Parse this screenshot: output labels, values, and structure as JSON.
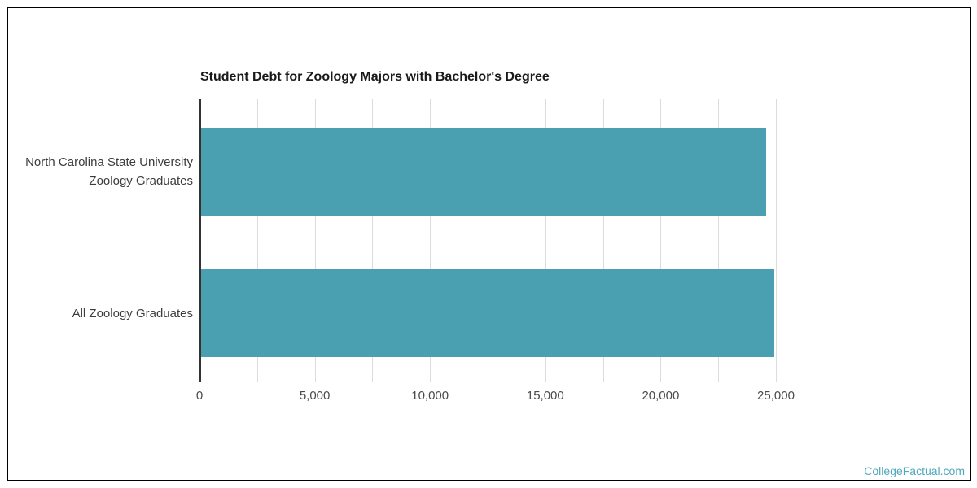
{
  "chart_data": {
    "type": "bar",
    "orientation": "horizontal",
    "title": "Student Debt for Zoology Majors with Bachelor's Degree",
    "categories": [
      {
        "label": "North Carolina State University Zoology Graduates",
        "lines": [
          "North Carolina State University",
          "Zoology Graduates"
        ]
      },
      {
        "label": "All Zoology Graduates",
        "lines": [
          "All Zoology Graduates"
        ]
      }
    ],
    "values": [
      24500,
      24850
    ],
    "xlabel": "",
    "ylabel": "",
    "xlim": [
      0,
      25000
    ],
    "x_ticks": [
      {
        "value": 0,
        "label": "0"
      },
      {
        "value": 5000,
        "label": "5,000"
      },
      {
        "value": 10000,
        "label": "10,000"
      },
      {
        "value": 15000,
        "label": "15,000"
      },
      {
        "value": 20000,
        "label": "20,000"
      },
      {
        "value": 25000,
        "label": "25,000"
      }
    ],
    "gridline_step": 2500,
    "grid": true,
    "legend": "none",
    "bar_color": "#4A9FB0",
    "axis_line_color": "#333333",
    "gridline_color": "#dcdcdc",
    "background": "#ffffff"
  },
  "watermark": {
    "text": "CollegeFactual.com",
    "color": "#4FA8BC"
  }
}
